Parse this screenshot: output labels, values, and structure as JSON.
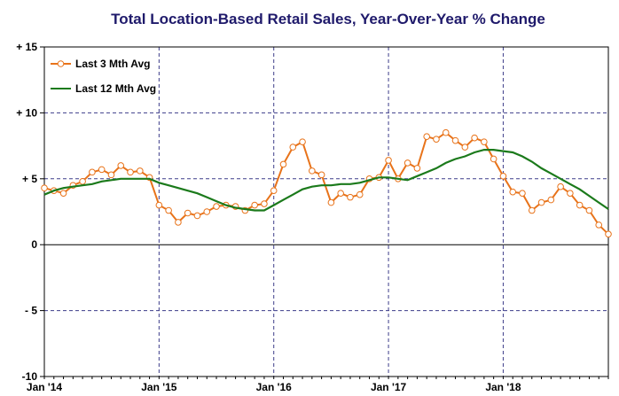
{
  "chart_data": {
    "type": "line",
    "title": "Total Location-Based Retail Sales, Year-Over-Year % Change",
    "xlabel": "",
    "ylabel": "",
    "ylim": [
      -10,
      15
    ],
    "y_ticks": [
      {
        "value": 15,
        "label": "+ 15"
      },
      {
        "value": 10,
        "label": "+ 10"
      },
      {
        "value": 5,
        "label": "+ 5"
      },
      {
        "value": 0,
        "label": "0"
      },
      {
        "value": -5,
        "label": "- 5"
      },
      {
        "value": -10,
        "label": "-10"
      }
    ],
    "x_ticks": [
      {
        "index": 0,
        "label": "Jan '14"
      },
      {
        "index": 12,
        "label": "Jan '15"
      },
      {
        "index": 24,
        "label": "Jan '16"
      },
      {
        "index": 36,
        "label": "Jan '17"
      },
      {
        "index": 48,
        "label": "Jan '18"
      }
    ],
    "grid": true,
    "legend_position": "top-left",
    "series": [
      {
        "name": "Last 3 Mth Avg",
        "color": "#e8731a",
        "marker": "circle",
        "values": [
          4.3,
          4.1,
          3.9,
          4.5,
          4.8,
          5.5,
          5.7,
          5.3,
          6.0,
          5.5,
          5.6,
          5.1,
          3.0,
          2.6,
          1.7,
          2.4,
          2.2,
          2.5,
          2.9,
          3.0,
          2.9,
          2.6,
          3.0,
          3.1,
          4.1,
          6.1,
          7.4,
          7.8,
          5.6,
          5.3,
          3.2,
          3.9,
          3.6,
          3.8,
          5.0,
          5.1,
          6.4,
          5.0,
          6.2,
          5.8,
          8.2,
          8.0,
          8.5,
          7.9,
          7.4,
          8.1,
          7.8,
          6.5,
          5.2,
          4.0,
          3.9,
          2.6,
          3.2,
          3.4,
          4.4,
          3.9,
          3.0,
          2.6,
          1.5,
          0.8
        ]
      },
      {
        "name": "Last 12 Mth Avg",
        "color": "#1b7a1b",
        "marker": "none",
        "values": [
          3.8,
          4.1,
          4.3,
          4.4,
          4.5,
          4.6,
          4.8,
          4.9,
          5.0,
          5.0,
          5.0,
          5.0,
          4.7,
          4.5,
          4.3,
          4.1,
          3.9,
          3.6,
          3.3,
          3.0,
          2.8,
          2.7,
          2.6,
          2.6,
          3.0,
          3.4,
          3.8,
          4.2,
          4.4,
          4.5,
          4.5,
          4.6,
          4.6,
          4.7,
          4.9,
          5.1,
          5.1,
          5.0,
          4.9,
          5.2,
          5.5,
          5.8,
          6.2,
          6.5,
          6.7,
          7.0,
          7.2,
          7.2,
          7.1,
          7.0,
          6.7,
          6.3,
          5.8,
          5.4,
          5.0,
          4.6,
          4.2,
          3.7,
          3.2,
          2.7
        ]
      }
    ]
  },
  "colors": {
    "title": "#1f1a6b",
    "grid": "#3d3d8a",
    "axis": "#000000"
  }
}
